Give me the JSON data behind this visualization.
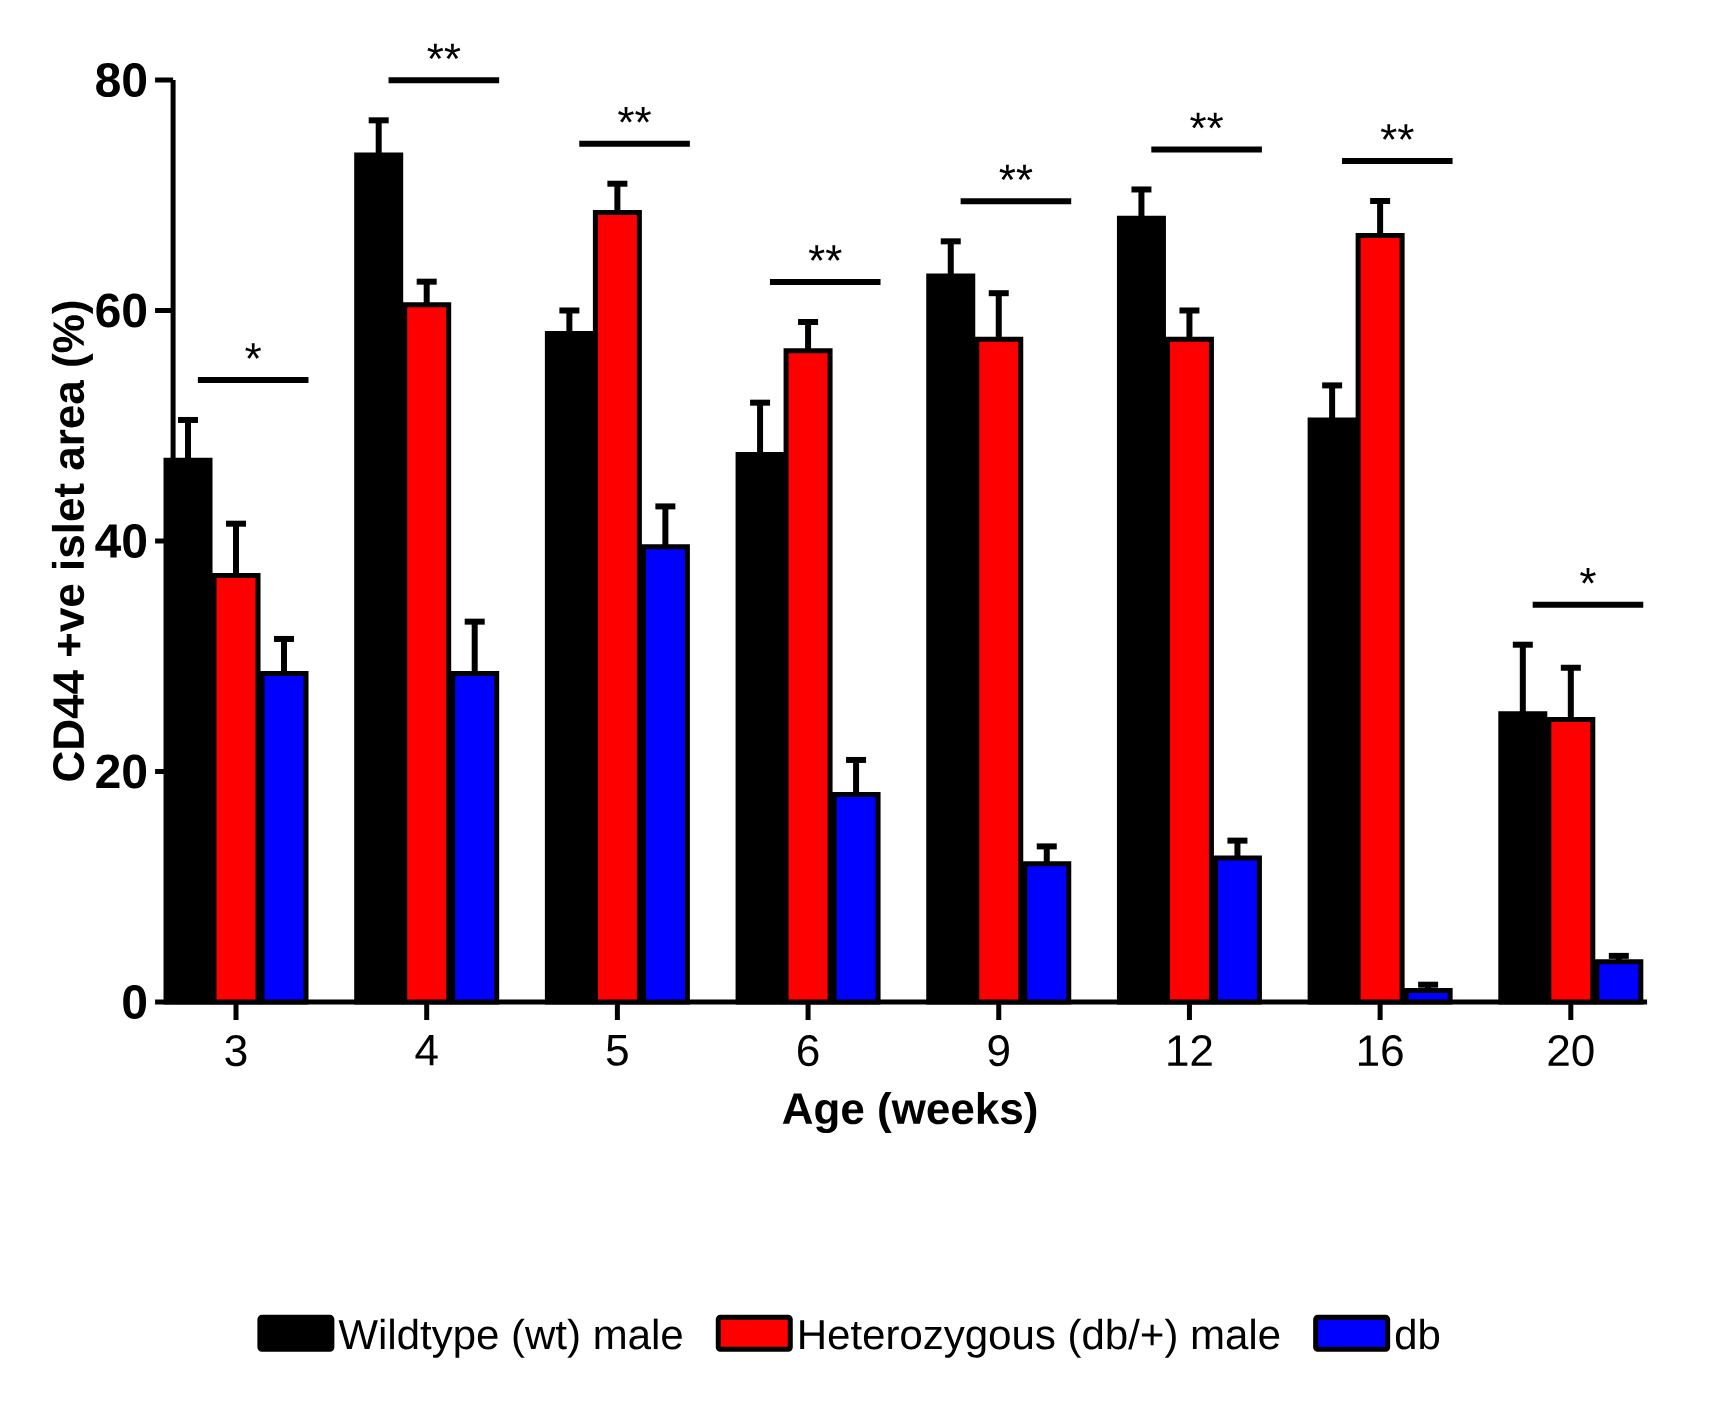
{
  "chart_data": {
    "type": "bar",
    "xlabel": "Age (weeks)",
    "ylabel": "CD44 +ve islet area (%)",
    "categories": [
      "3",
      "4",
      "5",
      "6",
      "9",
      "12",
      "16",
      "20"
    ],
    "series": [
      {
        "name": "Wildtype (wt) male",
        "color": "#000000",
        "values": [
          47,
          73.5,
          58,
          47.5,
          63,
          68,
          50.5,
          25
        ],
        "errors": [
          3.5,
          3,
          2,
          4.5,
          3,
          2.5,
          3,
          6
        ]
      },
      {
        "name": "Heterozygous (db/+) male",
        "color": "#ff0000",
        "values": [
          37,
          60.5,
          68.5,
          56.5,
          57.5,
          57.5,
          66.5,
          24.5
        ],
        "errors": [
          4.5,
          2,
          2.5,
          2.5,
          4,
          2.5,
          3,
          4.5
        ]
      },
      {
        "name": "db",
        "color": "#0000ff",
        "values": [
          28.5,
          28.5,
          39.5,
          18,
          12,
          12.5,
          1,
          3.5
        ],
        "errors": [
          3,
          4.5,
          3.5,
          3,
          1.5,
          1.5,
          0.5,
          0.5
        ]
      }
    ],
    "ylim": [
      0,
      80
    ],
    "yticks": [
      0,
      20,
      40,
      60,
      80
    ],
    "grid": false,
    "legend": "bottom",
    "annotations": [
      "*",
      "**",
      "**",
      "**",
      "**",
      "**",
      "**",
      "*"
    ]
  }
}
